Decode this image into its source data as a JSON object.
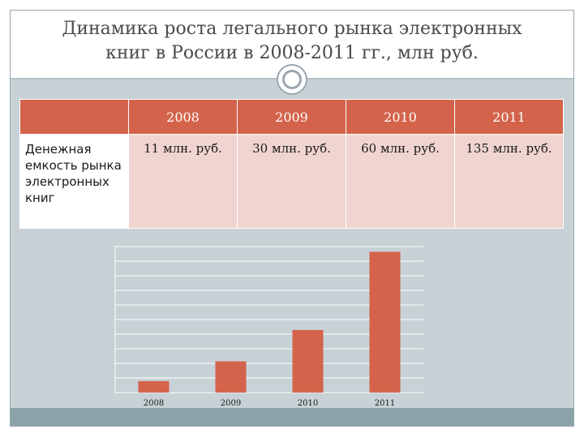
{
  "slide": {
    "title_line1": "Динамика роста легального рынка электронных",
    "title_line2": "книг в России в 2008-2011 гг., млн руб."
  },
  "table": {
    "header": [
      "2008",
      "2009",
      "2010",
      "2011"
    ],
    "row_label": "Денежная емкость рынка электронных книг",
    "row_values": [
      "11 млн. руб.",
      "30 млн. руб.",
      "60 млн. руб.",
      "135 млн. руб."
    ]
  },
  "chart_data": {
    "type": "bar",
    "categories": [
      "2008",
      "2009",
      "2010",
      "2011"
    ],
    "values": [
      11,
      30,
      60,
      135
    ],
    "title": "",
    "xlabel": "",
    "ylabel": "",
    "ylim": [
      0,
      140
    ],
    "grid": true,
    "bar_color": "#d4634b"
  },
  "colors": {
    "accent": "#d4634b",
    "cell_fill": "#f0d4d0",
    "content_bg": "#c7d1d6",
    "footer_bar": "#8aa2a8"
  }
}
